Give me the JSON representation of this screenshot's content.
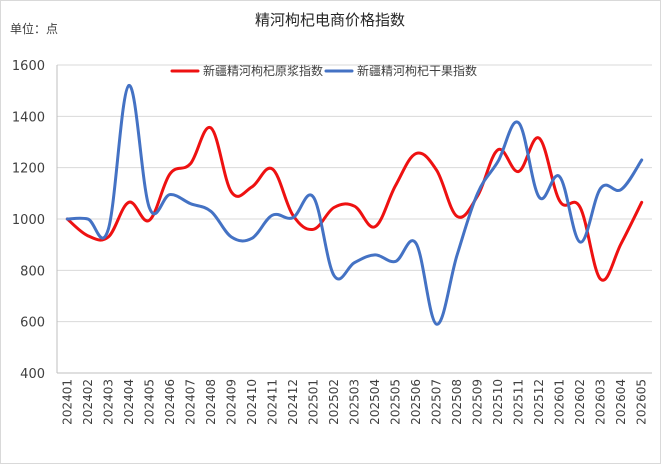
{
  "chart_data": {
    "type": "line",
    "title": "精河枸杞电商价格指数",
    "unit_label": "单位：点",
    "ylim": [
      400,
      1600
    ],
    "yticks": [
      400,
      600,
      800,
      1000,
      1200,
      1400,
      1600
    ],
    "grid": true,
    "legend_position": "top",
    "categories": [
      "202401",
      "202402",
      "202403",
      "202404",
      "202405",
      "202406",
      "202407",
      "202408",
      "202409",
      "202410",
      "202411",
      "202412",
      "202501",
      "202502",
      "202503",
      "202504",
      "202505",
      "202506",
      "202507",
      "202508",
      "202509",
      "202510",
      "202511",
      "202512",
      "202601",
      "202602",
      "202603",
      "202604",
      "202605"
    ],
    "series": [
      {
        "name": "新疆精河枸杞原浆指数",
        "color": "#ee1111",
        "values": [
          1000,
          935,
          930,
          1065,
          995,
          1175,
          1215,
          1355,
          1105,
          1125,
          1195,
          1015,
          960,
          1045,
          1050,
          970,
          1130,
          1255,
          1190,
          1010,
          1090,
          1270,
          1185,
          1315,
          1070,
          1045,
          765,
          905,
          1065
        ]
      },
      {
        "name": "新疆精河枸杞干果指数",
        "color": "#4472c4",
        "values": [
          1000,
          1000,
          960,
          1520,
          1045,
          1095,
          1060,
          1030,
          930,
          925,
          1015,
          1005,
          1085,
          780,
          830,
          860,
          835,
          905,
          590,
          860,
          1100,
          1225,
          1375,
          1085,
          1165,
          910,
          1120,
          1115,
          1230
        ]
      }
    ]
  }
}
